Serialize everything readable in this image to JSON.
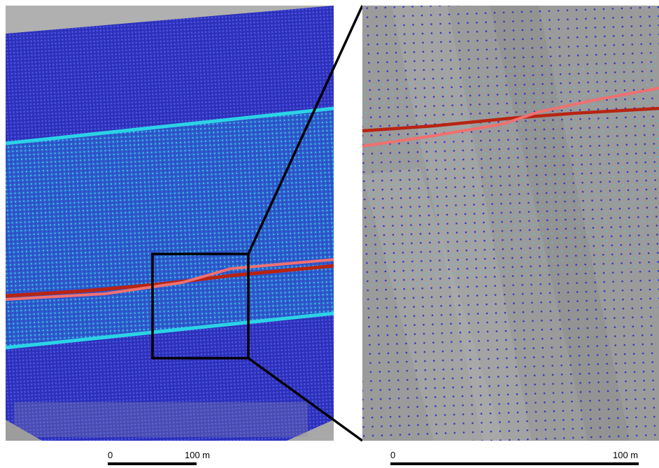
{
  "colors": {
    "hillshade_light": "#a7a7a7",
    "hillshade_dark": "#7f7f7f",
    "dense_blue": "#2f36c8",
    "grid_blue": "#3136c4",
    "cyan_edge": "#2bd3e6",
    "overlap_blue": "#2f74d8",
    "track_red": "#b82412",
    "track_pink": "#f07070",
    "frame": "#000000"
  },
  "left_panel": {
    "scale_bar": {
      "label_zero": "0",
      "label_end": "100 m"
    }
  },
  "right_panel": {
    "scale_bar": {
      "label_zero": "0",
      "label_end": "100 m"
    }
  }
}
